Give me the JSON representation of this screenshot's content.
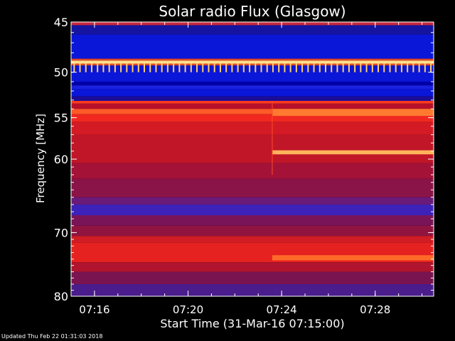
{
  "chart_data": {
    "type": "heatmap",
    "title": "Solar radio Flux (Glasgow)",
    "ylabel_text": "Frequency ",
    "ylabel_unit": "[MHz]",
    "xlabel": "Start Time (31-Mar-16 07:15:00)",
    "x_range_minutes": [
      0,
      15.5
    ],
    "y_range_mhz": [
      45,
      80
    ],
    "y_scale": "log",
    "x_ticks": [
      {
        "label": "07:16",
        "minute": 1
      },
      {
        "label": "07:20",
        "minute": 5
      },
      {
        "label": "07:24",
        "minute": 9
      },
      {
        "label": "07:28",
        "minute": 13
      }
    ],
    "y_ticks": [
      {
        "label": "45",
        "mhz": 45
      },
      {
        "label": "50",
        "mhz": 50
      },
      {
        "label": "55",
        "mhz": 55
      },
      {
        "label": "60",
        "mhz": 60
      },
      {
        "label": "70",
        "mhz": 70
      },
      {
        "label": "80",
        "mhz": 80
      }
    ],
    "frequency_bands": [
      {
        "f0": 45.0,
        "f1": 45.3,
        "color": "#c8283c"
      },
      {
        "f0": 45.3,
        "f1": 46.2,
        "color": "#1414a0"
      },
      {
        "f0": 46.2,
        "f1": 48.6,
        "color": "#0a16d8"
      },
      {
        "f0": 48.6,
        "f1": 48.8,
        "color": "#e04a2a"
      },
      {
        "f0": 48.8,
        "f1": 49.1,
        "color": "#ffe08a"
      },
      {
        "f0": 49.1,
        "f1": 49.3,
        "color": "#e04a2a"
      },
      {
        "f0": 49.3,
        "f1": 51.0,
        "color": "#0a16d8"
      },
      {
        "f0": 51.0,
        "f1": 51.4,
        "color": "#0000a8"
      },
      {
        "f0": 51.4,
        "f1": 51.8,
        "color": "#1a20e0"
      },
      {
        "f0": 51.8,
        "f1": 52.6,
        "color": "#0a16d8"
      },
      {
        "f0": 52.6,
        "f1": 53.1,
        "color": "#1c0c98"
      },
      {
        "f0": 53.1,
        "f1": 53.4,
        "color": "#ff3a20"
      },
      {
        "f0": 53.4,
        "f1": 54.0,
        "color": "#b8102a"
      },
      {
        "f0": 54.0,
        "f1": 54.6,
        "color": "#ff5a28"
      },
      {
        "f0": 54.6,
        "f1": 55.5,
        "color": "#f02820"
      },
      {
        "f0": 55.5,
        "f1": 57.0,
        "color": "#d41a24"
      },
      {
        "f0": 57.0,
        "f1": 60.5,
        "color": "#c01628"
      },
      {
        "f0": 60.5,
        "f1": 62.5,
        "color": "#a41238"
      },
      {
        "f0": 62.5,
        "f1": 65.0,
        "color": "#8a1448"
      },
      {
        "f0": 65.0,
        "f1": 66.0,
        "color": "#6a1a78"
      },
      {
        "f0": 66.0,
        "f1": 67.5,
        "color": "#3c22b8"
      },
      {
        "f0": 67.5,
        "f1": 69.0,
        "color": "#7a1458"
      },
      {
        "f0": 69.0,
        "f1": 70.5,
        "color": "#901440"
      },
      {
        "f0": 70.5,
        "f1": 71.5,
        "color": "#d01c24"
      },
      {
        "f0": 71.5,
        "f1": 74.5,
        "color": "#e62220"
      },
      {
        "f0": 74.5,
        "f1": 76.0,
        "color": "#b0142e"
      },
      {
        "f0": 76.0,
        "f1": 78.0,
        "color": "#7a1450"
      },
      {
        "f0": 78.0,
        "f1": 80.0,
        "color": "#4a1c8c"
      }
    ],
    "event_bands": [
      {
        "f0": 54.0,
        "f1": 54.8,
        "t0": 8.6,
        "t1": 15.5,
        "color": "#ff7a30"
      },
      {
        "f0": 58.9,
        "f1": 59.4,
        "t0": 8.6,
        "t1": 15.5,
        "color": "#ffb45a"
      },
      {
        "f0": 73.4,
        "f1": 74.2,
        "t0": 8.6,
        "t1": 15.5,
        "color": "#ff6a28"
      }
    ],
    "event_onset_minute": 8.6,
    "periodic_spike": {
      "f0": 49.1,
      "f1": 50.0,
      "color": "#ffd070",
      "interval_minutes": 0.25
    }
  },
  "footer": {
    "updated": "Updated Thu Feb 22 01:31:03 2018"
  }
}
